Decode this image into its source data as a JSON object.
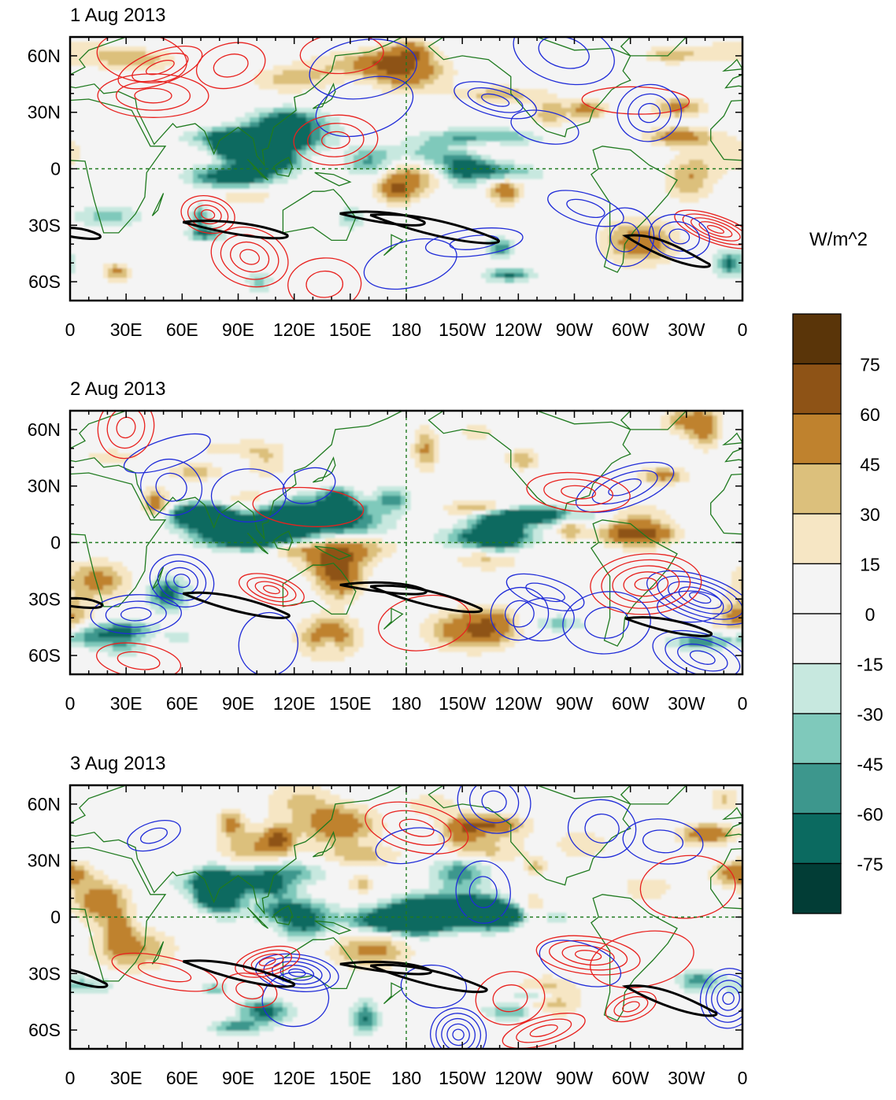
{
  "panels": [
    {
      "title": "1 Aug 2013",
      "seed": 11
    },
    {
      "title": "2 Aug 2013",
      "seed": 23
    },
    {
      "title": "3 Aug 2013",
      "seed": 37
    }
  ],
  "lat_labels": [
    "60N",
    "30N",
    "0",
    "30S",
    "60S"
  ],
  "lat_values": [
    60,
    30,
    0,
    -30,
    -60
  ],
  "lon_labels": [
    "0",
    "30E",
    "60E",
    "90E",
    "120E",
    "150E",
    "180",
    "150W",
    "120W",
    "90W",
    "60W",
    "30W",
    "0"
  ],
  "lon_values": [
    0,
    30,
    60,
    90,
    120,
    150,
    180,
    210,
    240,
    270,
    300,
    330,
    360
  ],
  "colorbar": {
    "units": "W/m^2",
    "labels": [
      "75",
      "60",
      "45",
      "30",
      "15",
      "0",
      "-15",
      "-30",
      "-45",
      "-60",
      "-75"
    ],
    "colors_top_to_bottom": [
      "#5a3509",
      "#8e5316",
      "#bf822e",
      "#dcc07c",
      "#f6e6c4",
      "#f4f4f4",
      "#f4f4f4",
      "#c7e8df",
      "#7fc9bb",
      "#3d978d",
      "#0b6a60",
      "#023d36"
    ]
  },
  "colors": {
    "coast": "#1f7a1f",
    "pos_contour": "#e8211e",
    "neg_contour": "#1f2bd8",
    "thick": "#000000",
    "refline": "#1f7a1f"
  }
}
